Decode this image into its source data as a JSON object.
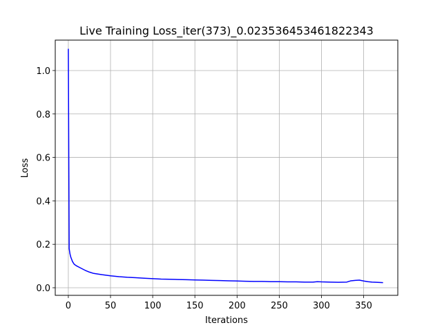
{
  "chart_data": {
    "type": "line",
    "title": "Live Training Loss_iter(373)_0.023536453461822343",
    "xlabel": "Iterations",
    "ylabel": "Loss",
    "xlim": [
      -15.5,
      390.5
    ],
    "ylim": [
      -0.035,
      1.14
    ],
    "xticks": [
      0,
      50,
      100,
      150,
      200,
      250,
      300,
      350
    ],
    "xtick_labels": [
      "0",
      "50",
      "100",
      "150",
      "200",
      "250",
      "300",
      "350"
    ],
    "yticks": [
      0.0,
      0.2,
      0.4,
      0.6,
      0.8,
      1.0
    ],
    "ytick_labels": [
      "0.0",
      "0.2",
      "0.4",
      "0.6",
      "0.8",
      "1.0"
    ],
    "grid": true,
    "legend": false,
    "series": [
      {
        "color": "#0000ff",
        "x": [
          0,
          1,
          2,
          3,
          5,
          7,
          10,
          15,
          20,
          25,
          30,
          40,
          50,
          60,
          70,
          80,
          90,
          100,
          110,
          120,
          130,
          140,
          150,
          160,
          170,
          180,
          190,
          200,
          210,
          220,
          230,
          240,
          250,
          260,
          270,
          280,
          290,
          295,
          300,
          310,
          320,
          330,
          335,
          340,
          345,
          350,
          355,
          360,
          365,
          373
        ],
        "y": [
          1.1,
          0.18,
          0.155,
          0.14,
          0.12,
          0.108,
          0.1,
          0.09,
          0.08,
          0.072,
          0.066,
          0.06,
          0.055,
          0.051,
          0.048,
          0.046,
          0.044,
          0.042,
          0.04,
          0.039,
          0.038,
          0.037,
          0.036,
          0.035,
          0.034,
          0.033,
          0.032,
          0.031,
          0.03,
          0.029,
          0.029,
          0.028,
          0.028,
          0.027,
          0.027,
          0.026,
          0.026,
          0.028,
          0.027,
          0.026,
          0.025,
          0.026,
          0.032,
          0.034,
          0.035,
          0.031,
          0.028,
          0.026,
          0.025,
          0.0235
        ]
      }
    ]
  }
}
